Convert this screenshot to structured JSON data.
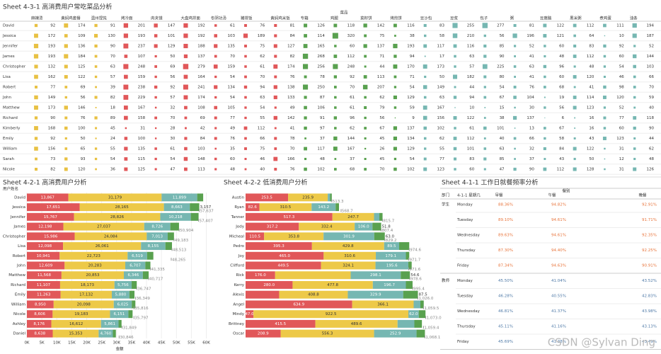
{
  "table": {
    "title": "Sheet 4-3-1 高消费用户常吃菜品分析",
    "group_header": "菜品",
    "columns": [
      "麻辣烫",
      "黄焖鸡套餐",
      "温州馄饨",
      "烤冷面",
      "肉夹馍",
      "大盘鸡拌面",
      "冬阴功汤",
      "猪排饭",
      "黄焖鸡米饭",
      "专箱",
      "鸡腿",
      "菜籽饼",
      "烤煎饼",
      "豆沙包",
      "豆浆",
      "包子",
      "粥",
      "豆腐脑",
      "黑米粥",
      "煮鸡蛋",
      "油条"
    ],
    "rows": [
      {
        "name": "David",
        "values": [
          92,
          174,
          91,
          201,
          147,
          192,
          61,
          76,
          81,
          126,
          118,
          142,
          116,
          83,
          255,
          277,
          81,
          122,
          112,
          111,
          194
        ]
      },
      {
        "name": "Jessica",
        "values": [
          172,
          109,
          130,
          193,
          101,
          192,
          103,
          189,
          84,
          114,
          320,
          75,
          38,
          58,
          210,
          56,
          196,
          121,
          64,
          10,
          187
        ]
      },
      {
        "name": "Jennifer",
        "values": [
          193,
          136,
          90,
          237,
          129,
          188,
          135,
          75,
          127,
          165,
          60,
          137,
          193,
          117,
          116,
          85,
          52,
          60,
          83,
          92,
          52
        ]
      },
      {
        "name": "James",
        "values": [
          193,
          184,
          70,
          107,
          50,
          137,
          70,
          62,
          82,
          268,
          112,
          71,
          94,
          17,
          63,
          90,
          41,
          48,
          112,
          60,
          144
        ]
      },
      {
        "name": "Christopher",
        "values": [
          132,
          125,
          63,
          248,
          69,
          279,
          159,
          61,
          174,
          256,
          248,
          44,
          170,
          173,
          57,
          225,
          63,
          96,
          48,
          54,
          103
        ]
      },
      {
        "name": "Lisa",
        "values": [
          162,
          122,
          57,
          159,
          56,
          164,
          54,
          70,
          76,
          78,
          92,
          113,
          71,
          50,
          182,
          80,
          41,
          60,
          120,
          46,
          66
        ]
      },
      {
        "name": "Robert",
        "values": [
          77,
          69,
          39,
          238,
          92,
          241,
          134,
          94,
          138,
          250,
          70,
          207,
          54,
          149,
          44,
          54,
          76,
          68,
          41,
          98,
          70
        ]
      },
      {
        "name": "John",
        "values": [
          149,
          56,
          82,
          229,
          57,
          174,
          54,
          63,
          133,
          87,
          61,
          62,
          129,
          63,
          94,
          67,
          104,
          19,
          114,
          120,
          59
        ]
      },
      {
        "name": "Matthew",
        "values": [
          173,
          146,
          18,
          167,
          32,
          108,
          105,
          54,
          49,
          106,
          61,
          79,
          59,
          167,
          10,
          15,
          30,
          56,
          123,
          52,
          40
        ]
      },
      {
        "name": "Richard",
        "values": [
          90,
          76,
          89,
          158,
          70,
          69,
          77,
          55,
          142,
          91,
          96,
          56,
          9,
          156,
          122,
          38,
          137,
          6,
          16,
          77,
          118
        ]
      },
      {
        "name": "Kimberly",
        "values": [
          168,
          100,
          45,
          31,
          28,
          42,
          49,
          112,
          41,
          97,
          62,
          67,
          137,
          102,
          61,
          101,
          13,
          67,
          16,
          60,
          90
        ]
      },
      {
        "name": "Emily",
        "values": [
          92,
          50,
          24,
          100,
          30,
          84,
          76,
          66,
          78,
          37,
          144,
          45,
          134,
          62,
          112,
          40,
          66,
          58,
          43,
          123,
          44
        ]
      },
      {
        "name": "William",
        "values": [
          156,
          65,
          55,
          135,
          61,
          103,
          35,
          75,
          70,
          117,
          167,
          26,
          129,
          55,
          101,
          63,
          32,
          84,
          122,
          31,
          62
        ]
      },
      {
        "name": "Sarah",
        "values": [
          73,
          93,
          54,
          115,
          54,
          148,
          60,
          46,
          166,
          48,
          37,
          45,
          54,
          77,
          83,
          85,
          37,
          43,
          50,
          12,
          48
        ]
      },
      {
        "name": "Nicole",
        "values": [
          82,
          120,
          36,
          125,
          47,
          113,
          48,
          40,
          76,
          102,
          68,
          70,
          102,
          123,
          60,
          47,
          90,
          112,
          128,
          31,
          126
        ]
      }
    ]
  },
  "chart_data": [
    {
      "type": "bar",
      "orientation": "horizontal",
      "title": "Sheet 4-2-1 高消费用户分析",
      "y_label": "用户姓名",
      "x_label": "金额",
      "categories": [
        "David",
        "Jessica",
        "Jennifer",
        "James",
        "Christopher",
        "Lisa",
        "Robert",
        "John",
        "Matthew",
        "Richard",
        "Emily",
        "William",
        "Nicole",
        "Ashley",
        "Daniel"
      ],
      "series": [
        {
          "color": "#e15759",
          "values": [
            13867,
            17651,
            15767,
            12198,
            15986,
            12098,
            10941,
            12609,
            11568,
            11107,
            11263,
            8950,
            8606,
            8176,
            8638
          ],
          "value_labels": [
            "13,867",
            "17,651",
            "15,767",
            "12,198",
            "15,986",
            "12,098",
            "10,941",
            "12,609",
            "11,568",
            "11,107",
            "11,263",
            "8,950",
            "8,606",
            "8,176",
            "8,638"
          ]
        },
        {
          "color": "#edc948",
          "values": [
            31179,
            28165,
            28826,
            27037,
            24084,
            26061,
            22723,
            20283,
            20853,
            18173,
            17132,
            20098,
            19183,
            16612,
            15353
          ],
          "value_labels": [
            "31,179",
            "28,165",
            "28,826",
            "27,037",
            "24,084",
            "26,061",
            "22,723",
            "20,283",
            "20,853",
            "18,173",
            "17,132",
            "20,098",
            "19,183",
            "16,612",
            "15,353"
          ]
        },
        {
          "color": "#76b7b2",
          "values": [
            11899,
            8663,
            10218,
            8726,
            7013,
            8155,
            6519,
            6707,
            6346,
            5756,
            5880,
            6025,
            6151,
            5861,
            4760
          ],
          "value_labels": [
            "11,899",
            "8,663",
            "10,218",
            "8,726",
            "7,013",
            "8,155",
            "6,519",
            "6,707",
            "6,346",
            "5,756",
            "5,880",
            "6,025",
            "6,151",
            "5,861",
            "4,760"
          ]
        },
        {
          "color": "#59a14f",
          "values": [
            2000,
            3157,
            2600,
            2900,
            2100,
            2200,
            2100,
            1700,
            1950,
            1700,
            1700,
            1200,
            1400,
            1000,
            1000
          ],
          "value_labels": [
            null,
            "3,157",
            null,
            null,
            null,
            null,
            null,
            null,
            null,
            null,
            null,
            null,
            null,
            null,
            null
          ]
        }
      ],
      "totals": [
        null,
        57637,
        57407,
        50904,
        49183,
        48513,
        48265,
        41335,
        40717,
        36747,
        36349,
        35816,
        35797,
        31849,
        30846
      ],
      "total_labels": [
        null,
        "57,637",
        "57,407",
        "50,904",
        "49,183",
        "48,513",
        "48,265",
        "41,335",
        "40,717",
        "36,747",
        "36,349",
        "35,816",
        "35,797",
        "31,849",
        "30,846"
      ],
      "xlim": [
        0,
        62000
      ],
      "xticks": [
        {
          "value": 0,
          "label": "0K"
        },
        {
          "value": 5000,
          "label": "5K"
        },
        {
          "value": 10000,
          "label": "10K"
        },
        {
          "value": 15000,
          "label": "15K"
        },
        {
          "value": 20000,
          "label": "20K"
        },
        {
          "value": 25000,
          "label": "25K"
        },
        {
          "value": 30000,
          "label": "30K"
        },
        {
          "value": 35000,
          "label": "35K"
        },
        {
          "value": 40000,
          "label": "40K"
        },
        {
          "value": 45000,
          "label": "45K"
        },
        {
          "value": 50000,
          "label": "50K"
        },
        {
          "value": 55000,
          "label": "55K"
        },
        {
          "value": 60000,
          "label": "60K"
        }
      ]
    },
    {
      "type": "bar",
      "orientation": "horizontal",
      "title": "Sheet 4-2-2 低消费用户分析",
      "categories": [
        "Austin",
        "Ryan",
        "Tanner",
        "Jody",
        "Micheal",
        "Pedro",
        "Joy",
        "Clifford",
        "Rick",
        "Kerry",
        "Alexis",
        "Angel",
        "Mindy",
        "Brittney",
        "Oscar"
      ],
      "series": [
        {
          "color": "#e15759",
          "values": [
            253.5,
            82.6,
            517.3,
            317.2,
            110.5,
            395.3,
            465.0,
            449.5,
            176.0,
            280.0,
            200,
            634.9,
            47.0,
            415.5,
            208.9
          ],
          "value_labels": [
            "253.5",
            "82.6",
            "517.3",
            "317.2",
            "110.5",
            "395.3",
            "465.0",
            "449.5",
            "176.0",
            "280.0",
            null,
            "634.9",
            "47.0",
            "415.5",
            "208.9"
          ]
        },
        {
          "color": "#edc948",
          "values": [
            235.9,
            310.5,
            247.7,
            332.4,
            353.8,
            429.8,
            310.6,
            324.1,
            450,
            477.8,
            408.8,
            366.1,
            922.5,
            489.6,
            556.3
          ],
          "value_labels": [
            "235.9",
            "310.5",
            "247.7",
            "332.4",
            "353.8",
            "429.8",
            "310.6",
            "324.1",
            null,
            "477.8",
            "408.8",
            "366.1",
            "922.5",
            "489.6",
            "556.3"
          ]
        },
        {
          "color": "#76b7b2",
          "values": [
            14,
            143.2,
            31.7,
            106.0,
            301.9,
            89.5,
            179.1,
            195.6,
            298.1,
            196.7,
            329.9,
            40,
            62.0,
            100,
            252.9
          ],
          "value_labels": [
            null,
            "143.2",
            null,
            "106.0",
            "301.9",
            "89.5",
            "179.1",
            "195.6",
            "298.1",
            "196.7",
            "329.9",
            null,
            "62.0",
            null,
            "252.9"
          ]
        },
        {
          "color": "#59a14f",
          "values": [
            10,
            20,
            19,
            51.8,
            63.0,
            60,
            20,
            20,
            54.6,
            40,
            87.5,
            20,
            40,
            45,
            50
          ],
          "value_labels": [
            null,
            null,
            null,
            "51.8",
            "63.0",
            null,
            null,
            null,
            "54.6",
            null,
            "87.5",
            null,
            null,
            null,
            null
          ]
        }
      ],
      "totals": [
        513.3,
        568.7,
        815.7,
        807.4,
        829.2,
        974.6,
        971.7,
        971.6,
        978.6,
        995.4,
        1026.0,
        1059.5,
        1073.0,
        1059.4,
        1068.1
      ],
      "total_labels": [
        "513.3",
        "568.7",
        "815.7",
        "807.4",
        "829.2",
        "974.6",
        "971.7",
        "971.6",
        "978.6",
        "995.4",
        "1,026.0",
        "1,059.5",
        "1,073.0",
        "1,059.4",
        "1,068.1"
      ],
      "xlim": [
        0,
        1100
      ]
    }
  ],
  "frequency_table": {
    "title": "Sheet 4-1-1 工作日就餐频率分析",
    "headers": [
      "部门",
      "4-1-1 星期几",
      "早餐",
      "午餐",
      "晚餐"
    ],
    "header_group": "餐别",
    "groups": [
      {
        "name": "学生",
        "color": "#e8743b",
        "rows": [
          {
            "day": "Monday",
            "values": [
              "88.36%",
              "94.82%",
              "92.91%"
            ]
          },
          {
            "day": "Tuesday",
            "values": [
              "89.10%",
              "94.61%",
              "91.71%"
            ]
          },
          {
            "day": "Wednesday",
            "values": [
              "89.63%",
              "94.61%",
              "92.35%"
            ]
          },
          {
            "day": "Thursday",
            "values": [
              "87.30%",
              "94.40%",
              "92.25%"
            ]
          },
          {
            "day": "Friday",
            "values": [
              "87.34%",
              "94.63%",
              "90.91%"
            ]
          }
        ]
      },
      {
        "name": "教师",
        "color": "#4e79a7",
        "rows": [
          {
            "day": "Monday",
            "values": [
              "45.50%",
              "41.04%",
              "43.52%"
            ]
          },
          {
            "day": "Tuesday",
            "values": [
              "46.28%",
              "40.55%",
              "42.83%"
            ]
          },
          {
            "day": "Wednesday",
            "values": [
              "46.81%",
              "41.37%",
              "43.98%"
            ]
          },
          {
            "day": "Thursday",
            "values": [
              "45.11%",
              "41.16%",
              "43.13%"
            ]
          },
          {
            "day": "Friday",
            "values": [
              "45.69%",
              "41.38%",
              "43.49%"
            ]
          }
        ]
      }
    ]
  },
  "watermark": "CSDN @Sylvan Ding"
}
